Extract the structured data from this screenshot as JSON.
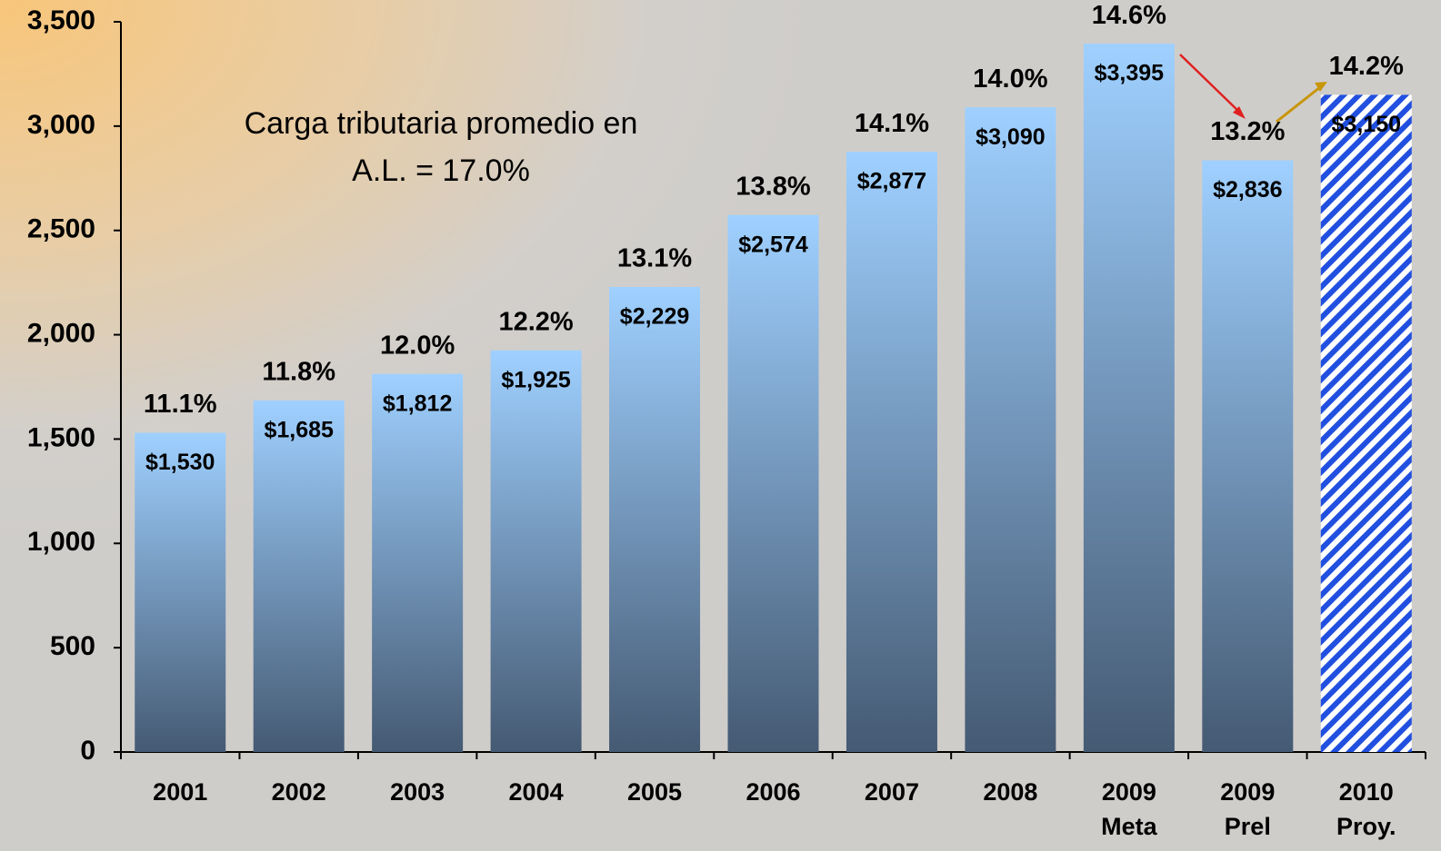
{
  "chart_data": {
    "type": "bar",
    "categories": [
      "2001",
      "2002",
      "2003",
      "2004",
      "2005",
      "2006",
      "2007",
      "2008",
      "2009\nMeta",
      "2009\nPrel",
      "2010\nProy."
    ],
    "values": [
      1530,
      1685,
      1812,
      1925,
      2229,
      2574,
      2877,
      3090,
      3395,
      2836,
      3150
    ],
    "value_labels": [
      "$1,530",
      "$1,685",
      "$1,812",
      "$1,925",
      "$2,229",
      "$2,574",
      "$2,877",
      "$3,090",
      "$3,395",
      "$2,836",
      "$3,150"
    ],
    "bar_annotations": [
      "11.1%",
      "11.8%",
      "12.0%",
      "12.2%",
      "13.1%",
      "13.8%",
      "14.1%",
      "14.0%",
      "14.6%",
      "13.2%",
      "14.2%"
    ],
    "annotation": "Carga tributaria promedio en\nA.L. = 17.0%",
    "gradient": [
      "#9fd0ff",
      "#455a73"
    ],
    "hatched": [
      false,
      false,
      false,
      false,
      false,
      false,
      false,
      false,
      false,
      false,
      true
    ],
    "hatch_color": "#2150e0",
    "ylim": [
      0,
      3500
    ],
    "yticks": [
      0,
      500,
      {
        "value": 1000,
        "label": "1,000"
      },
      {
        "value": 1500,
        "label": "1,500"
      },
      {
        "value": 2000,
        "label": "2,000"
      },
      {
        "value": 2500,
        "label": "2,500"
      },
      {
        "value": 3000,
        "label": "3,000"
      },
      {
        "value": 3500,
        "label": "3,500"
      }
    ]
  }
}
